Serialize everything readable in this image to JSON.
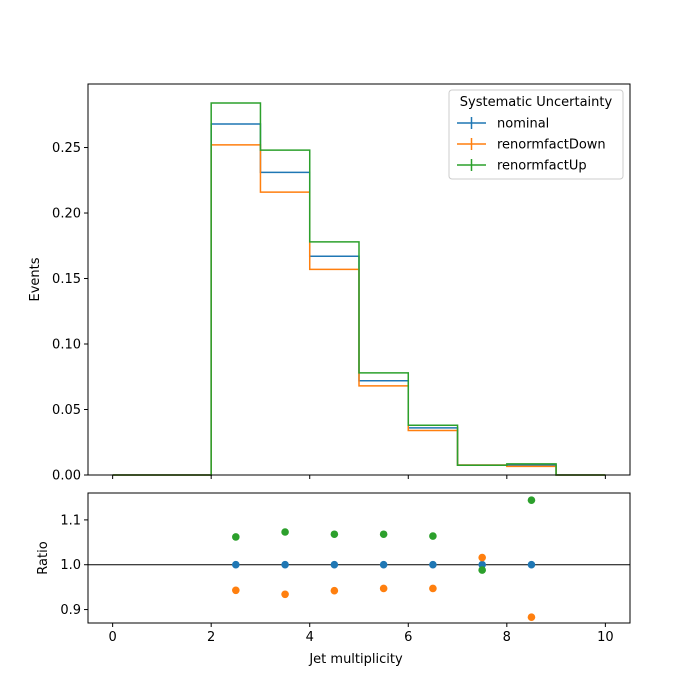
{
  "colors": {
    "nominal": "#1f77b4",
    "renormfactDown": "#ff7f0e",
    "renormfactUp": "#2ca02c",
    "reference_line": "#000000"
  },
  "chart_data": [
    {
      "type": "histogram-step",
      "panel": "main",
      "xlabel": "",
      "ylabel": "Events",
      "xlim": [
        -0.5,
        10.5
      ],
      "ylim": [
        0,
        0.2985
      ],
      "yticks": [
        0.0,
        0.05,
        0.1,
        0.15,
        0.2,
        0.25
      ],
      "ytick_labels": [
        "0.00",
        "0.05",
        "0.10",
        "0.15",
        "0.20",
        "0.25"
      ],
      "bin_edges": [
        0,
        1,
        2,
        3,
        4,
        5,
        6,
        7,
        8,
        9,
        10
      ],
      "legend": {
        "title": "Systematic Uncertainty",
        "placement": "top-right"
      },
      "series": [
        {
          "name": "nominal",
          "color": "#1f77b4",
          "values": [
            0,
            0,
            0.268,
            0.231,
            0.167,
            0.072,
            0.036,
            0.0075,
            0.0075,
            0
          ]
        },
        {
          "name": "renormfactDown",
          "color": "#ff7f0e",
          "values": [
            0,
            0,
            0.252,
            0.216,
            0.157,
            0.068,
            0.034,
            0.0076,
            0.0066,
            0
          ]
        },
        {
          "name": "renormfactUp",
          "color": "#2ca02c",
          "values": [
            0,
            0,
            0.284,
            0.248,
            0.178,
            0.078,
            0.038,
            0.0074,
            0.0085,
            0
          ]
        }
      ]
    },
    {
      "type": "scatter",
      "panel": "ratio",
      "xlabel": "Jet multiplicity",
      "ylabel": "Ratio",
      "xlim": [
        -0.5,
        10.5
      ],
      "ylim": [
        0.87,
        1.16
      ],
      "xticks": [
        0,
        2,
        4,
        6,
        8,
        10
      ],
      "xtick_labels": [
        "0",
        "2",
        "4",
        "6",
        "8",
        "10"
      ],
      "yticks": [
        0.9,
        1.0,
        1.1
      ],
      "ytick_labels": [
        "0.9",
        "1.0",
        "1.1"
      ],
      "reference_line": 1.0,
      "x": [
        2.5,
        3.5,
        4.5,
        5.5,
        6.5,
        7.5,
        8.5
      ],
      "series": [
        {
          "name": "nominal",
          "color": "#1f77b4",
          "values": [
            1.0,
            1.0,
            1.0,
            1.0,
            1.0,
            1.0,
            1.0
          ]
        },
        {
          "name": "renormfactDown",
          "color": "#ff7f0e",
          "values": [
            0.943,
            0.934,
            0.942,
            0.947,
            0.947,
            1.016,
            0.883
          ]
        },
        {
          "name": "renormfactUp",
          "color": "#2ca02c",
          "values": [
            1.062,
            1.073,
            1.068,
            1.068,
            1.064,
            0.988,
            1.144
          ]
        }
      ]
    }
  ]
}
